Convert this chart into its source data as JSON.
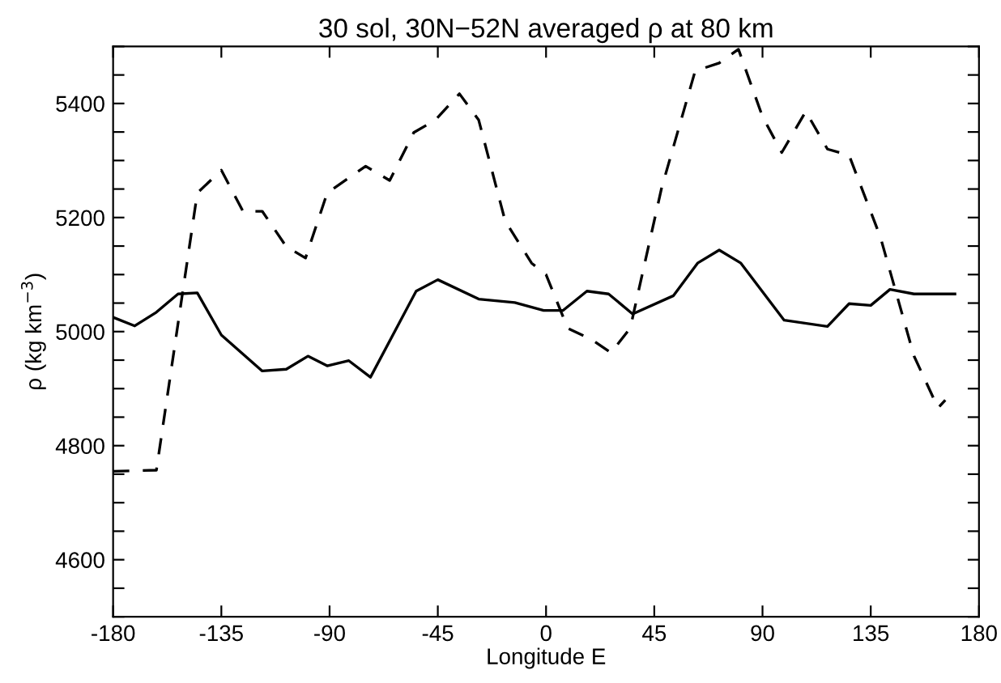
{
  "chart_data": {
    "type": "line",
    "title": "30 sol, 30N−52N averaged ρ at 80 km",
    "xlabel": "Longitude E",
    "ylabel": "ρ (kg km$^{−3}$)",
    "xlim": [
      -180,
      180
    ],
    "xticks": [
      -180,
      -135,
      -90,
      -45,
      0,
      45,
      90,
      135,
      180
    ],
    "ylim": [
      4500,
      5500
    ],
    "yticks": [
      {
        "value": 4500,
        "label": null
      },
      {
        "value": 4550,
        "label": null
      },
      4600,
      {
        "value": 4650,
        "label": null
      },
      {
        "value": 4700,
        "label": null
      },
      {
        "value": 4750,
        "label": null
      },
      4800,
      {
        "value": 4850,
        "label": null
      },
      {
        "value": 4900,
        "label": null
      },
      {
        "value": 4950,
        "label": null
      },
      5000,
      {
        "value": 5050,
        "label": null
      },
      {
        "value": 5100,
        "label": null
      },
      {
        "value": 5150,
        "label": null
      },
      5200,
      {
        "value": 5250,
        "label": null
      },
      {
        "value": 5300,
        "label": null
      },
      {
        "value": 5350,
        "label": null
      },
      5400,
      {
        "value": 5450,
        "label": null
      },
      {
        "value": 5500,
        "label": null
      }
    ],
    "grid": false,
    "legend": false,
    "marker": "none",
    "series": [
      {
        "color": "#000000",
        "line_style": "solid",
        "x": [
          -180,
          -171,
          -162,
          -153,
          -145,
          -135,
          -118,
          -108,
          -99,
          -91,
          -82,
          -73,
          -54,
          -45,
          -28,
          -13,
          -1,
          7,
          17,
          26,
          36,
          53,
          63,
          72,
          81,
          99,
          117,
          126,
          135,
          143,
          153,
          170
        ],
        "values": [
          5025,
          5010,
          5034,
          5066,
          5068,
          4994,
          4931,
          4934,
          4957,
          4940,
          4949,
          4920,
          5071,
          5091,
          5057,
          5051,
          5037,
          5037,
          5071,
          5066,
          5031,
          5063,
          5120,
          5143,
          5120,
          5020,
          5009,
          5049,
          5046,
          5074,
          5066,
          5066
        ]
      },
      {
        "color": "#000000",
        "line_style": "dashed",
        "x": [
          -180,
          -162,
          -145,
          -135,
          -126,
          -118,
          -108,
          -100,
          -91,
          -75,
          -65,
          -55,
          -46,
          -36,
          -28,
          -17,
          -6,
          0,
          9,
          19,
          27,
          35,
          48,
          62,
          72,
          80,
          90,
          98,
          108,
          117,
          126,
          139,
          153,
          163,
          166
        ],
        "values": [
          4755,
          4757,
          5243,
          5283,
          5211,
          5211,
          5149,
          5129,
          5243,
          5290,
          5265,
          5349,
          5371,
          5417,
          5371,
          5194,
          5120,
          5100,
          5006,
          4986,
          4963,
          5006,
          5251,
          5457,
          5471,
          5495,
          5377,
          5314,
          5386,
          5320,
          5309,
          5166,
          4957,
          4866,
          4880
        ]
      }
    ]
  }
}
